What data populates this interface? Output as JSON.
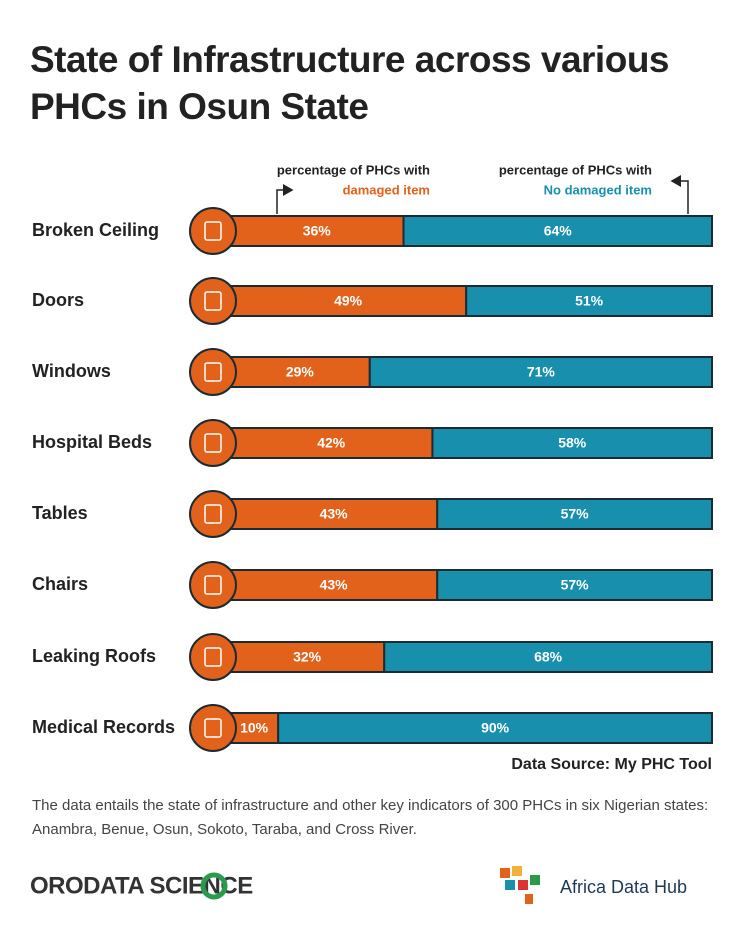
{
  "chart_data": {
    "type": "stacked-bar",
    "title": "State of Infrastructure across various PHCs in Osun State",
    "annotations": [
      "percentage of PHCs with",
      "percentage of PHCs with"
    ],
    "categories": [
      "Broken Ceiling",
      "Doors",
      "Windows",
      "Hospital Beds",
      "Tables",
      "Chairs",
      "Leaking Roofs",
      "Medical Records"
    ],
    "series": [
      {
        "name": "damaged item",
        "color": "#e2621b",
        "values": [
          36,
          49,
          29,
          42,
          43,
          43,
          32,
          10
        ],
        "value_labels": [
          "36%",
          "49%",
          "29%",
          "42%",
          "43%",
          "43%",
          "32%",
          "10%"
        ]
      },
      {
        "name": "No damaged item",
        "color": "#1890ad",
        "values": [
          64,
          51,
          71,
          58,
          57,
          57,
          68,
          90
        ],
        "value_labels": [
          "64%",
          "51%",
          "71%",
          "58%",
          "57%",
          "57%",
          "68%",
          "90%"
        ]
      }
    ],
    "source": "Data Source: My PHC Tool",
    "note": "The data entails the state of infrastructure and other key indicators of 300 PHCs in six Nigerian states: Anambra, Benue, Osun, Sokoto, Taraba, and Cross River."
  },
  "footer": {
    "left_logo": "ORODATA SCIENCE",
    "right_logo": "Africa Data Hub"
  }
}
